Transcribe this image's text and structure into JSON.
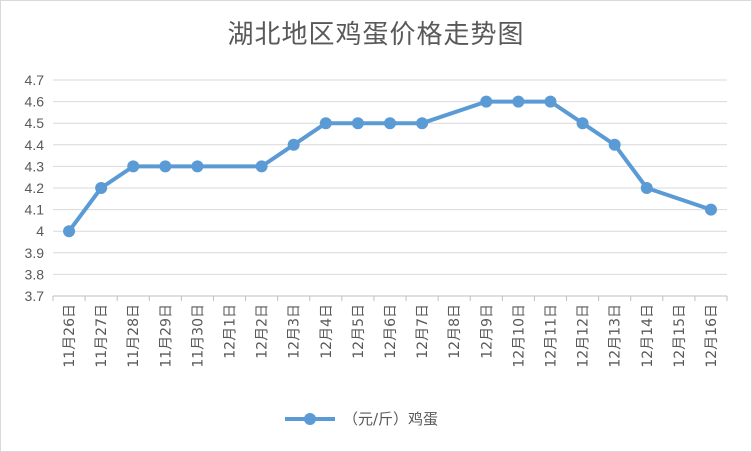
{
  "chart_data": {
    "type": "line",
    "title": "湖北地区鸡蛋价格走势图",
    "categories": [
      "11月26日",
      "11月27日",
      "11月28日",
      "11月29日",
      "11月30日",
      "12月1日",
      "12月2日",
      "12月3日",
      "12月4日",
      "12月5日",
      "12月6日",
      "12月7日",
      "12月8日",
      "12月9日",
      "12月10日",
      "12月11日",
      "12月12日",
      "12月13日",
      "12月14日",
      "12月15日",
      "12月16日"
    ],
    "series": [
      {
        "name": "（元/斤）鸡蛋",
        "values": [
          4.0,
          4.2,
          4.3,
          4.3,
          4.3,
          null,
          4.3,
          4.4,
          4.5,
          4.5,
          4.5,
          4.5,
          null,
          4.6,
          4.6,
          4.6,
          4.5,
          4.4,
          4.2,
          null,
          4.1
        ],
        "color": "#5b9bd5"
      }
    ],
    "yticks": [
      "3.7",
      "3.8",
      "3.9",
      "4",
      "4.1",
      "4.2",
      "4.3",
      "4.4",
      "4.5",
      "4.6",
      "4.7"
    ],
    "ylim": [
      3.7,
      4.7
    ],
    "grid": true,
    "legend_position": "bottom",
    "xlabel": "",
    "ylabel": ""
  }
}
